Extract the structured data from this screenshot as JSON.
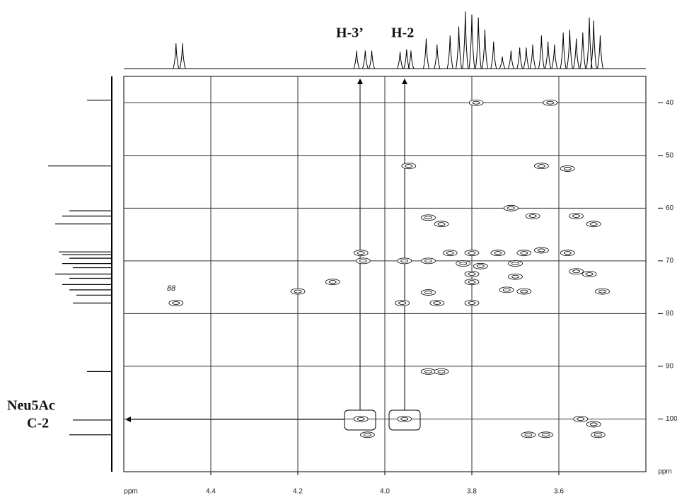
{
  "chart_data": {
    "type": "scatter",
    "x_unit": "ppm",
    "y_unit": "ppm",
    "xlim": [
      4.6,
      3.4
    ],
    "ylim": [
      35,
      110
    ],
    "xticks": [
      4.4,
      4.2,
      {
        "value": 4,
        "label": "4.0"
      },
      3.8,
      3.6
    ],
    "yticks": [
      40,
      50,
      60,
      70,
      80,
      90,
      100
    ],
    "grid": true,
    "color": "#000000",
    "annotations": [
      "H-3’",
      "H-2",
      "Neu5Ac",
      "C-2",
      "88"
    ],
    "x": [
      4.48,
      4.2,
      4.12,
      4.055,
      4.05,
      4.055,
      4.04,
      3.955,
      3.96,
      3.955,
      3.945,
      3.9,
      3.9,
      3.9,
      3.88,
      3.87,
      3.85,
      3.82,
      3.8,
      3.8,
      3.8,
      3.8,
      3.79,
      3.78,
      3.9,
      3.87,
      3.71,
      3.68,
      3.7,
      3.68,
      3.66,
      3.64,
      3.62,
      3.64,
      3.58,
      3.56,
      3.52,
      3.58,
      3.56,
      3.53,
      3.5,
      3.55,
      3.52,
      3.51,
      3.67,
      3.63,
      3.7,
      3.74,
      3.72
    ],
    "y": [
      78,
      75.8,
      74,
      68.5,
      70,
      100,
      103,
      100,
      78,
      70,
      52,
      70,
      76,
      61.8,
      78,
      63,
      68.5,
      70.5,
      68.5,
      72.5,
      74,
      78,
      40,
      71,
      91,
      91,
      60,
      68.5,
      70.5,
      75.8,
      61.5,
      52,
      40,
      68,
      52.5,
      61.5,
      63,
      68.5,
      72,
      72.5,
      75.8,
      100,
      101,
      103,
      103,
      103,
      73,
      68.5,
      75.5
    ],
    "top_trace": {
      "x": [
        4.48,
        4.465,
        4.065,
        4.045,
        4.03,
        3.965,
        3.95,
        3.94,
        3.905,
        3.88,
        3.85,
        3.83,
        3.815,
        3.8,
        3.785,
        3.77,
        3.75,
        3.73,
        3.71,
        3.69,
        3.675,
        3.66,
        3.64,
        3.625,
        3.61,
        3.59,
        3.575,
        3.56,
        3.545,
        3.53,
        3.52,
        3.505
      ],
      "values": [
        0.42,
        0.42,
        0.3,
        0.3,
        0.3,
        0.28,
        0.32,
        0.3,
        0.5,
        0.4,
        0.55,
        0.7,
        0.95,
        0.9,
        0.85,
        0.65,
        0.45,
        0.2,
        0.3,
        0.35,
        0.35,
        0.4,
        0.55,
        0.45,
        0.4,
        0.6,
        0.65,
        0.5,
        0.6,
        0.85,
        0.8,
        0.55
      ]
    },
    "left_trace": {
      "y": [
        39.5,
        52,
        60.5,
        61.5,
        63,
        68.3,
        68.8,
        69.5,
        70.5,
        71.3,
        72.5,
        73.3,
        74.5,
        75.5,
        76.5,
        78,
        91,
        100.2,
        103
      ],
      "values": [
        0.35,
        0.9,
        0.6,
        0.7,
        0.8,
        0.75,
        0.7,
        0.6,
        0.7,
        0.55,
        0.8,
        0.6,
        0.7,
        0.6,
        0.5,
        0.55,
        0.35,
        0.55,
        0.6
      ]
    }
  }
}
